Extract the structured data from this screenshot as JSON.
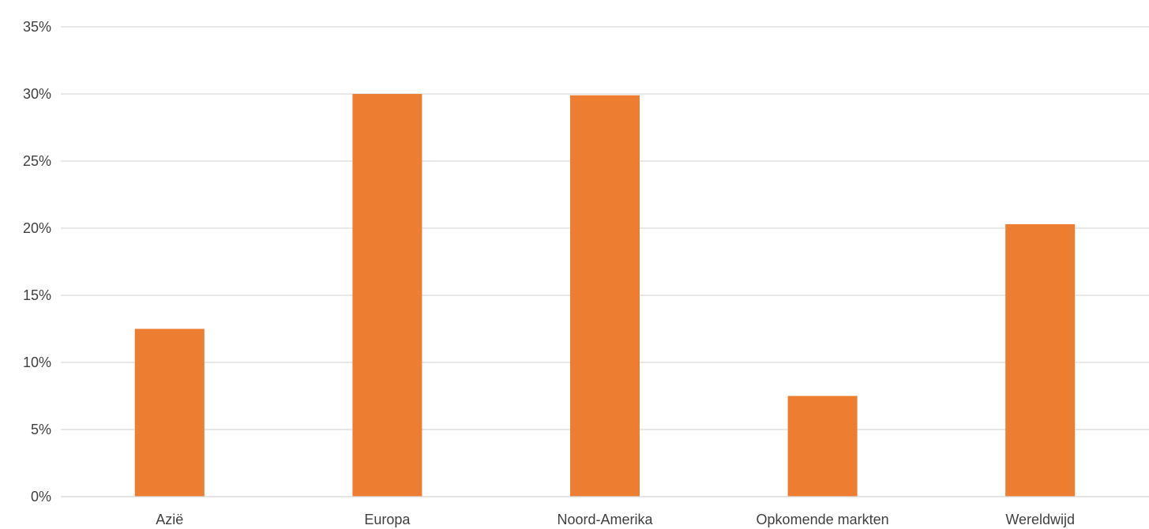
{
  "chart_data": {
    "type": "bar",
    "categories": [
      "Azië",
      "Europa",
      "Noord-Amerika",
      "Opkomende markten",
      "Wereldwijd"
    ],
    "values": [
      12.5,
      30.0,
      29.9,
      7.5,
      20.3
    ],
    "value_unit": "%",
    "ylim": [
      0,
      35
    ],
    "yticks": [
      0,
      5,
      10,
      15,
      20,
      25,
      30,
      35
    ],
    "ytick_labels": [
      "0%",
      "5%",
      "10%",
      "15%",
      "20%",
      "25%",
      "30%",
      "35%"
    ],
    "title": "",
    "xlabel": "",
    "ylabel": "",
    "grid": true,
    "legend": "none",
    "colors": {
      "bar": "#ed7d31",
      "grid": "#d9d9d9",
      "text": "#404040"
    }
  }
}
